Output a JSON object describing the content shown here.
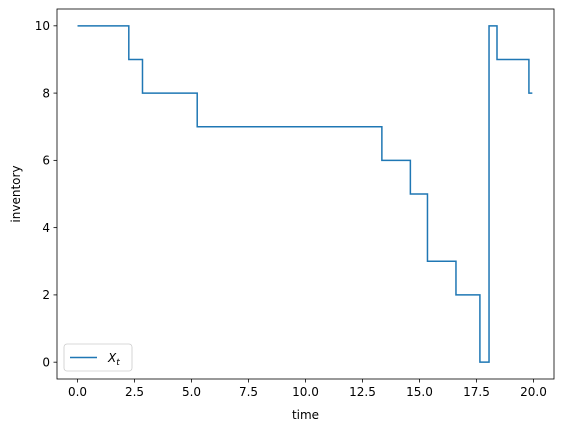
{
  "chart_data": {
    "type": "line",
    "style": "step-post",
    "xlabel": "time",
    "ylabel": "inventory",
    "xlim": [
      -0.9,
      20.9
    ],
    "ylim": [
      -0.5,
      10.5
    ],
    "xticks": [
      0.0,
      2.5,
      5.0,
      7.5,
      10.0,
      12.5,
      15.0,
      17.5,
      20.0
    ],
    "xtick_labels": [
      "0.0",
      "2.5",
      "5.0",
      "7.5",
      "10.0",
      "12.5",
      "15.0",
      "17.5",
      "20.0"
    ],
    "yticks": [
      0,
      2,
      4,
      6,
      8,
      10
    ],
    "ytick_labels": [
      "0",
      "2",
      "4",
      "6",
      "8",
      "10"
    ],
    "grid": false,
    "legend_position": "lower-left",
    "series": [
      {
        "name": "X_t",
        "color": "#1f77b4",
        "x": [
          0.0,
          2.25,
          2.85,
          5.25,
          13.35,
          14.6,
          15.35,
          16.6,
          17.65,
          18.05,
          18.4,
          19.8,
          19.95
        ],
        "y": [
          10,
          9,
          8,
          7,
          6,
          5,
          3,
          2,
          0,
          10,
          9,
          8,
          8
        ]
      }
    ]
  }
}
